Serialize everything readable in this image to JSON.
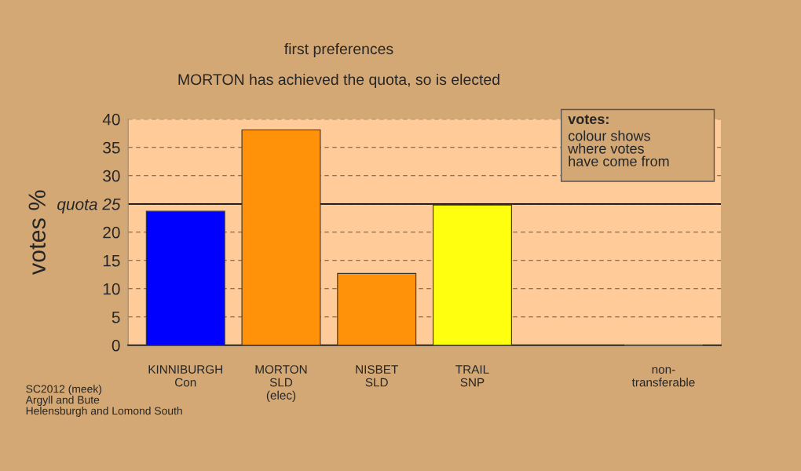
{
  "chart_data": {
    "type": "bar",
    "title": "first preferences",
    "subtitle": "MORTON has achieved the quota, so is elected",
    "ylabel": "votes %",
    "categories": [
      "KINNIBURGH\nCon",
      "MORTON\nSLD\n(elec)",
      "NISBET\nSLD",
      "TRAIL\nSNP",
      null,
      "non-\ntransferable"
    ],
    "values": [
      23.7,
      38.1,
      12.7,
      24.8,
      null,
      0
    ],
    "colors": [
      "#0000ff",
      "#ff9208",
      "#ff9208",
      "#ffff10",
      "#ff9208",
      "#ff9208"
    ],
    "ylim": [
      0,
      40
    ],
    "yticks": [
      0,
      5,
      10,
      15,
      20,
      {
        "value": 25,
        "label": "quota 25"
      },
      30,
      35,
      40
    ],
    "grid": "y",
    "ref_lines": [
      {
        "axis": "y",
        "value": 25,
        "color": "#000000",
        "line_style": "solid"
      }
    ],
    "annotations": [
      "votes:",
      "colour shows\nwhere votes\nhave come from",
      "SC2012 (meek)\nArgyll and Bute\nHelensburgh and Lomond South"
    ]
  }
}
